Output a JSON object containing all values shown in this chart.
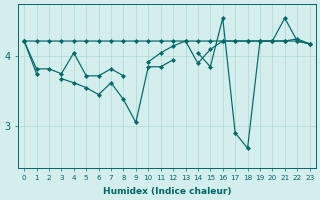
{
  "xlabel": "Humidex (Indice chaleur)",
  "x": [
    0,
    1,
    2,
    3,
    4,
    5,
    6,
    7,
    8,
    9,
    10,
    11,
    12,
    13,
    14,
    15,
    16,
    17,
    18,
    19,
    20,
    21,
    22,
    23
  ],
  "line_a": [
    4.22,
    4.22,
    4.22,
    4.22,
    4.22,
    4.22,
    4.22,
    4.22,
    4.22,
    4.22,
    4.22,
    4.22,
    4.22,
    4.22,
    4.22,
    4.22,
    4.22,
    4.22,
    4.22,
    4.22,
    4.22,
    4.22,
    4.25,
    4.18
  ],
  "line_b": [
    4.22,
    3.82,
    3.82,
    3.75,
    4.05,
    3.72,
    3.72,
    3.82,
    3.72,
    null,
    3.92,
    4.05,
    4.15,
    4.22,
    3.9,
    4.1,
    4.22,
    4.22,
    4.22,
    4.22,
    4.22,
    4.22,
    4.22,
    4.18
  ],
  "line_c": [
    4.22,
    3.75,
    null,
    3.68,
    3.62,
    3.55,
    3.45,
    3.62,
    3.38,
    3.05,
    3.85,
    3.85,
    3.95,
    null,
    4.05,
    3.85,
    4.55,
    2.9,
    2.68,
    4.22,
    4.22,
    4.55,
    4.22,
    4.18
  ],
  "bg_color": "#d4eeed",
  "line_color": "#006666",
  "grid_color": "#b0d8d5",
  "ylim": [
    2.4,
    4.75
  ],
  "yticks": [
    3,
    4
  ],
  "xlim": [
    -0.5,
    23.5
  ],
  "figsize": [
    3.2,
    2.0
  ],
  "dpi": 100
}
